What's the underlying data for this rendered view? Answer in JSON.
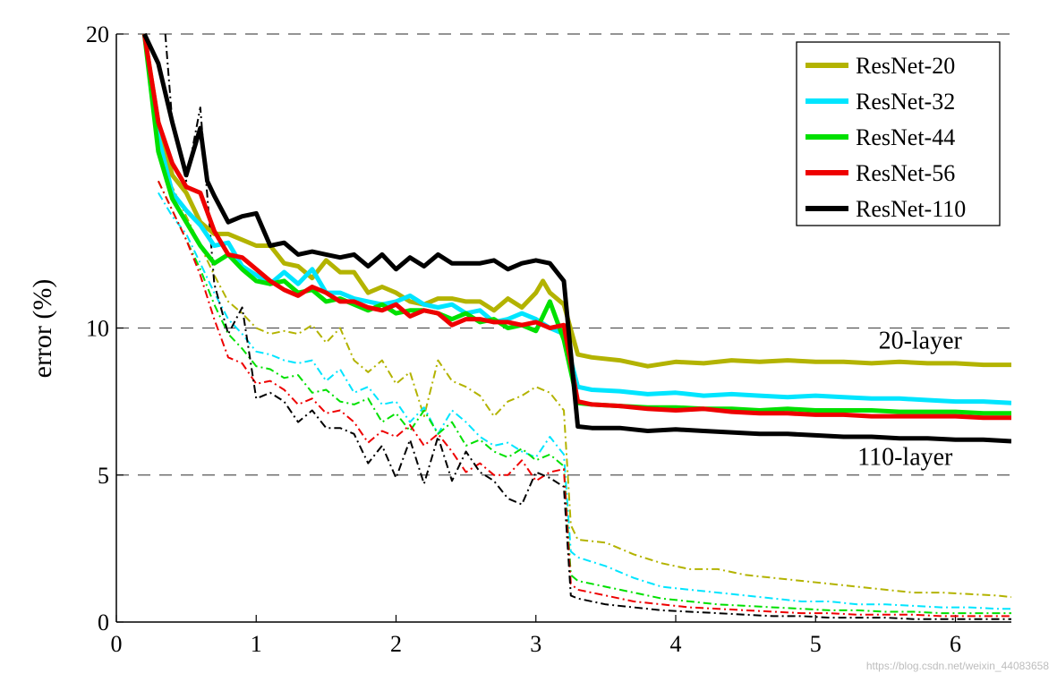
{
  "chart_data": {
    "type": "line",
    "title": "",
    "xlabel": "",
    "ylabel": "error (%)",
    "xlim": [
      0,
      6.4
    ],
    "ylim": [
      0,
      20
    ],
    "x_ticks": [
      0,
      1,
      2,
      3,
      4,
      5,
      6
    ],
    "y_ticks": [
      0,
      5,
      10,
      20
    ],
    "grid_lines_y": [
      5,
      10,
      20
    ],
    "grid_style": "dashed",
    "legend_position": "top-right",
    "line_styles": {
      "test": "solid, thick",
      "train": "dash-dot, thin"
    },
    "annotations": [
      {
        "text": "20-layer",
        "x": 5.45,
        "y": 9.3
      },
      {
        "text": "110-layer",
        "x": 5.3,
        "y": 5.35
      }
    ],
    "series": [
      {
        "name": "ResNet-20",
        "color": "#b3b300",
        "test_x": [
          0.2,
          0.3,
          0.4,
          0.5,
          0.6,
          0.7,
          0.8,
          0.9,
          1.0,
          1.1,
          1.2,
          1.3,
          1.4,
          1.5,
          1.6,
          1.7,
          1.8,
          1.9,
          2.0,
          2.1,
          2.2,
          2.3,
          2.4,
          2.5,
          2.6,
          2.7,
          2.8,
          2.9,
          3.0,
          3.05,
          3.1,
          3.2,
          3.3,
          3.4,
          3.6,
          3.8,
          4.0,
          4.2,
          4.4,
          4.6,
          4.8,
          5.0,
          5.2,
          5.4,
          5.6,
          5.8,
          6.0,
          6.2,
          6.4
        ],
        "test_y": [
          20,
          17,
          15.2,
          14.6,
          13.6,
          13.2,
          13.2,
          13,
          12.8,
          12.8,
          12.2,
          12.1,
          11.7,
          12.3,
          11.9,
          11.9,
          11.2,
          11.4,
          11.2,
          10.9,
          10.8,
          11,
          11,
          10.9,
          10.9,
          10.6,
          11,
          10.7,
          11.2,
          11.6,
          11.2,
          10.8,
          9.1,
          9.0,
          8.9,
          8.7,
          8.85,
          8.8,
          8.9,
          8.85,
          8.9,
          8.85,
          8.85,
          8.8,
          8.85,
          8.8,
          8.8,
          8.75,
          8.75
        ],
        "train_x": [
          0.3,
          0.4,
          0.5,
          0.6,
          0.7,
          0.8,
          0.9,
          1.0,
          1.1,
          1.2,
          1.3,
          1.4,
          1.5,
          1.6,
          1.7,
          1.8,
          1.9,
          2.0,
          2.1,
          2.2,
          2.3,
          2.4,
          2.5,
          2.6,
          2.7,
          2.8,
          2.9,
          3.0,
          3.1,
          3.2,
          3.25,
          3.3,
          3.5,
          3.7,
          3.9,
          4.1,
          4.3,
          4.5,
          4.7,
          4.9,
          5.1,
          5.3,
          5.5,
          5.7,
          5.9,
          6.1,
          6.3,
          6.4
        ],
        "train_y": [
          16,
          14.8,
          13.8,
          12.8,
          11.8,
          10.9,
          10.5,
          10,
          9.8,
          9.9,
          9.8,
          10.1,
          9.5,
          10.0,
          8.9,
          8.5,
          8.9,
          8.1,
          8.5,
          7.0,
          8.9,
          8.2,
          8.0,
          7.7,
          7.0,
          7.5,
          7.7,
          8.0,
          7.8,
          7.2,
          3.3,
          2.8,
          2.7,
          2.3,
          2.0,
          1.8,
          1.8,
          1.6,
          1.5,
          1.4,
          1.3,
          1.2,
          1.1,
          1.0,
          1.0,
          0.95,
          0.9,
          0.85
        ]
      },
      {
        "name": "ResNet-32",
        "color": "#00e5ff",
        "test_x": [
          0.2,
          0.3,
          0.4,
          0.5,
          0.6,
          0.7,
          0.8,
          0.9,
          1.0,
          1.1,
          1.2,
          1.3,
          1.4,
          1.5,
          1.6,
          1.7,
          1.8,
          1.9,
          2.0,
          2.1,
          2.2,
          2.3,
          2.4,
          2.5,
          2.6,
          2.7,
          2.8,
          2.9,
          3.0,
          3.1,
          3.2,
          3.3,
          3.4,
          3.6,
          3.8,
          4.0,
          4.2,
          4.4,
          4.6,
          4.8,
          5.0,
          5.2,
          5.4,
          5.6,
          5.8,
          6.0,
          6.2,
          6.4
        ],
        "test_y": [
          20,
          16.5,
          14.6,
          14.0,
          13.5,
          12.8,
          12.9,
          12.1,
          11.8,
          11.5,
          11.9,
          11.5,
          12.0,
          11.2,
          11.2,
          11.0,
          10.9,
          10.8,
          10.9,
          11.1,
          10.8,
          10.7,
          10.8,
          10.5,
          10.6,
          10.2,
          10.3,
          10.5,
          10.3,
          10.0,
          9.8,
          8.0,
          7.9,
          7.85,
          7.75,
          7.8,
          7.7,
          7.75,
          7.7,
          7.65,
          7.7,
          7.65,
          7.6,
          7.6,
          7.55,
          7.5,
          7.5,
          7.45
        ],
        "train_x": [
          0.3,
          0.4,
          0.5,
          0.6,
          0.7,
          0.8,
          0.9,
          1.0,
          1.1,
          1.2,
          1.3,
          1.4,
          1.5,
          1.6,
          1.7,
          1.8,
          1.9,
          2.0,
          2.1,
          2.2,
          2.3,
          2.4,
          2.5,
          2.6,
          2.7,
          2.8,
          2.9,
          3.0,
          3.1,
          3.2,
          3.25,
          3.3,
          3.5,
          3.7,
          3.9,
          4.1,
          4.3,
          4.5,
          4.7,
          4.9,
          5.1,
          5.3,
          5.5,
          5.7,
          5.9,
          6.1,
          6.3,
          6.4
        ],
        "train_y": [
          14.6,
          13.8,
          13.2,
          12.2,
          11.2,
          10.3,
          9.8,
          9.2,
          9.1,
          8.9,
          8.8,
          8.9,
          8.2,
          8.6,
          7.8,
          8.0,
          7.4,
          7.5,
          6.8,
          7.3,
          6.4,
          7.2,
          6.8,
          6.3,
          6.0,
          6.1,
          5.8,
          5.6,
          6.3,
          5.7,
          2.4,
          2.2,
          1.9,
          1.5,
          1.2,
          1.1,
          1.0,
          0.9,
          0.8,
          0.7,
          0.7,
          0.6,
          0.6,
          0.55,
          0.5,
          0.5,
          0.45,
          0.45
        ]
      },
      {
        "name": "ResNet-44",
        "color": "#00e000",
        "test_x": [
          0.2,
          0.3,
          0.4,
          0.5,
          0.6,
          0.7,
          0.8,
          0.9,
          1.0,
          1.1,
          1.2,
          1.3,
          1.4,
          1.5,
          1.6,
          1.7,
          1.8,
          1.9,
          2.0,
          2.1,
          2.2,
          2.3,
          2.4,
          2.5,
          2.6,
          2.7,
          2.8,
          2.9,
          3.0,
          3.1,
          3.2,
          3.3,
          3.4,
          3.6,
          3.8,
          4.0,
          4.2,
          4.4,
          4.6,
          4.8,
          5.0,
          5.2,
          5.4,
          5.6,
          5.8,
          6.0,
          6.2,
          6.4
        ],
        "test_y": [
          20,
          16.0,
          14.4,
          13.6,
          12.8,
          12.2,
          12.5,
          12.0,
          11.6,
          11.5,
          11.6,
          11.2,
          11.3,
          10.9,
          11.0,
          10.8,
          10.6,
          10.8,
          10.5,
          10.6,
          10.6,
          10.5,
          10.3,
          10.5,
          10.2,
          10.3,
          10.0,
          10.1,
          9.9,
          10.9,
          9.6,
          7.45,
          7.4,
          7.35,
          7.3,
          7.3,
          7.25,
          7.25,
          7.2,
          7.25,
          7.2,
          7.2,
          7.2,
          7.15,
          7.15,
          7.15,
          7.1,
          7.1
        ],
        "train_x": [
          0.3,
          0.4,
          0.5,
          0.6,
          0.7,
          0.8,
          0.9,
          1.0,
          1.1,
          1.2,
          1.3,
          1.4,
          1.5,
          1.6,
          1.7,
          1.8,
          1.9,
          2.0,
          2.1,
          2.2,
          2.3,
          2.4,
          2.5,
          2.6,
          2.7,
          2.8,
          2.9,
          3.0,
          3.1,
          3.2,
          3.25,
          3.3,
          3.5,
          3.7,
          3.9,
          4.1,
          4.3,
          4.5,
          4.7,
          4.9,
          5.1,
          5.3,
          5.5,
          5.7,
          5.9,
          6.1,
          6.3,
          6.4
        ],
        "train_y": [
          15.0,
          14.0,
          13.0,
          12.0,
          10.8,
          9.8,
          9.3,
          8.7,
          8.6,
          8.3,
          8.4,
          7.8,
          7.9,
          7.5,
          7.4,
          7.6,
          6.8,
          7.1,
          6.5,
          7.2,
          6.4,
          6.8,
          6.0,
          6.2,
          5.8,
          5.6,
          5.9,
          5.5,
          5.7,
          5.3,
          1.6,
          1.4,
          1.2,
          1.0,
          0.8,
          0.7,
          0.6,
          0.55,
          0.5,
          0.45,
          0.4,
          0.4,
          0.35,
          0.35,
          0.3,
          0.3,
          0.3,
          0.3
        ]
      },
      {
        "name": "ResNet-56",
        "color": "#ee0000",
        "test_x": [
          0.2,
          0.3,
          0.4,
          0.5,
          0.6,
          0.7,
          0.8,
          0.9,
          1.0,
          1.1,
          1.2,
          1.3,
          1.4,
          1.5,
          1.6,
          1.7,
          1.8,
          1.9,
          2.0,
          2.1,
          2.2,
          2.3,
          2.4,
          2.5,
          2.6,
          2.7,
          2.8,
          2.9,
          3.0,
          3.1,
          3.2,
          3.3,
          3.4,
          3.6,
          3.8,
          4.0,
          4.2,
          4.4,
          4.6,
          4.8,
          5.0,
          5.2,
          5.4,
          5.6,
          5.8,
          6.0,
          6.2,
          6.4
        ],
        "test_y": [
          20,
          17.0,
          15.6,
          14.8,
          14.6,
          13.3,
          12.5,
          12.4,
          12.0,
          11.6,
          11.3,
          11.1,
          11.4,
          11.2,
          10.9,
          10.9,
          10.7,
          10.6,
          10.8,
          10.4,
          10.6,
          10.5,
          10.1,
          10.3,
          10.3,
          10.2,
          10.2,
          10.1,
          10.2,
          10.0,
          10.1,
          7.5,
          7.4,
          7.35,
          7.25,
          7.2,
          7.25,
          7.15,
          7.1,
          7.1,
          7.05,
          7.05,
          7.0,
          7.0,
          7.0,
          7.0,
          6.95,
          6.95
        ],
        "train_x": [
          0.3,
          0.4,
          0.5,
          0.6,
          0.7,
          0.8,
          0.9,
          1.0,
          1.1,
          1.2,
          1.3,
          1.4,
          1.5,
          1.6,
          1.7,
          1.8,
          1.9,
          2.0,
          2.1,
          2.2,
          2.3,
          2.4,
          2.5,
          2.6,
          2.7,
          2.8,
          2.9,
          3.0,
          3.1,
          3.2,
          3.25,
          3.3,
          3.5,
          3.7,
          3.9,
          4.1,
          4.3,
          4.5,
          4.7,
          4.9,
          5.1,
          5.3,
          5.5,
          5.7,
          5.9,
          6.1,
          6.3,
          6.4
        ],
        "train_y": [
          15.0,
          14.0,
          13.0,
          11.8,
          10.3,
          9.0,
          8.8,
          8.1,
          8.2,
          7.9,
          7.4,
          7.6,
          7.1,
          7.2,
          6.8,
          6.1,
          6.5,
          6.3,
          6.7,
          6.0,
          6.4,
          5.8,
          5.1,
          5.4,
          5.0,
          5.0,
          5.5,
          4.8,
          5.1,
          5.2,
          1.3,
          1.1,
          0.9,
          0.7,
          0.6,
          0.5,
          0.45,
          0.4,
          0.35,
          0.3,
          0.3,
          0.25,
          0.25,
          0.25,
          0.2,
          0.2,
          0.2,
          0.2
        ]
      },
      {
        "name": "ResNet-110",
        "color": "#000000",
        "test_x": [
          0.2,
          0.3,
          0.4,
          0.5,
          0.55,
          0.6,
          0.65,
          0.7,
          0.8,
          0.9,
          1.0,
          1.1,
          1.2,
          1.3,
          1.4,
          1.5,
          1.6,
          1.7,
          1.8,
          1.9,
          2.0,
          2.1,
          2.2,
          2.3,
          2.4,
          2.5,
          2.6,
          2.7,
          2.8,
          2.9,
          3.0,
          3.1,
          3.2,
          3.3,
          3.4,
          3.6,
          3.8,
          4.0,
          4.2,
          4.4,
          4.6,
          4.8,
          5.0,
          5.2,
          5.4,
          5.6,
          5.8,
          6.0,
          6.2,
          6.4
        ],
        "test_y": [
          20,
          19.0,
          17.0,
          15.2,
          16.0,
          16.8,
          15.0,
          14.5,
          13.6,
          13.8,
          13.9,
          12.8,
          12.9,
          12.5,
          12.6,
          12.5,
          12.4,
          12.5,
          12.1,
          12.5,
          12.0,
          12.4,
          12.1,
          12.5,
          12.2,
          12.2,
          12.2,
          12.3,
          12.0,
          12.2,
          12.3,
          12.2,
          11.6,
          6.65,
          6.6,
          6.6,
          6.5,
          6.55,
          6.5,
          6.45,
          6.4,
          6.4,
          6.35,
          6.3,
          6.3,
          6.25,
          6.25,
          6.2,
          6.2,
          6.15
        ],
        "train_x": [
          0.35,
          0.4,
          0.5,
          0.6,
          0.7,
          0.8,
          0.9,
          1.0,
          1.1,
          1.2,
          1.3,
          1.4,
          1.5,
          1.6,
          1.7,
          1.8,
          1.9,
          2.0,
          2.1,
          2.2,
          2.3,
          2.4,
          2.5,
          2.6,
          2.7,
          2.8,
          2.9,
          3.0,
          3.1,
          3.2,
          3.25,
          3.3,
          3.5,
          3.7,
          3.9,
          4.1,
          4.3,
          4.5,
          4.7,
          4.9,
          5.1,
          5.3,
          5.5,
          5.7,
          5.9,
          6.1,
          6.3,
          6.4
        ],
        "train_y": [
          20.0,
          17.0,
          15.0,
          17.5,
          11.5,
          9.8,
          10.7,
          7.6,
          7.8,
          7.5,
          6.8,
          7.2,
          6.6,
          6.6,
          6.4,
          5.4,
          6.0,
          4.9,
          6.2,
          4.7,
          6.3,
          4.8,
          5.8,
          5.1,
          4.8,
          4.2,
          4.0,
          5.1,
          4.9,
          4.6,
          0.9,
          0.8,
          0.6,
          0.5,
          0.4,
          0.35,
          0.3,
          0.25,
          0.2,
          0.2,
          0.15,
          0.15,
          0.15,
          0.1,
          0.1,
          0.1,
          0.1,
          0.1
        ]
      }
    ]
  },
  "watermark": "https://blog.csdn.net/weixin_44083658"
}
